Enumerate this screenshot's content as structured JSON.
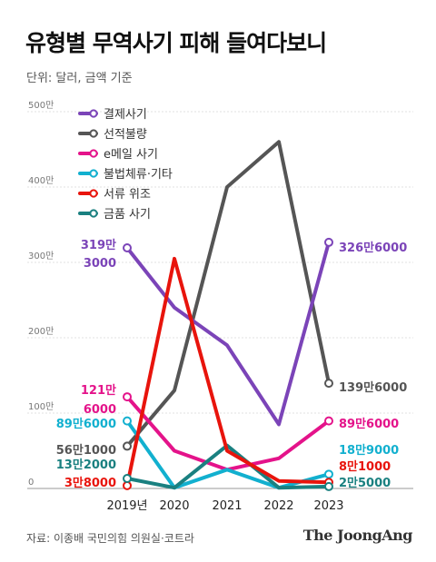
{
  "title": "유형별 무역사기 피해 들여다보니",
  "unit_note": "단위: 달러, 금액 기준",
  "source_note": "자료: 이종배 국민의힘 의원실·코트라",
  "brand": "The JoongAng",
  "chart_data": {
    "type": "line",
    "title": "유형별 무역사기 피해 들여다보니",
    "x": [
      "2019년",
      "2020",
      "2021",
      "2022",
      "2023"
    ],
    "y_ticks": [
      "0",
      "100만",
      "200만",
      "300만",
      "400만",
      "500만"
    ],
    "ylim": [
      0,
      5000000
    ],
    "grid": "horizontal",
    "legend_position": "top-left",
    "series": [
      {
        "name": "결제사기",
        "color": "#7b44b8",
        "values": [
          3193000,
          2400000,
          1900000,
          850000,
          3266000
        ],
        "start_label": [
          "319만",
          "3000"
        ],
        "end_label": "326만6000"
      },
      {
        "name": "선적불량",
        "color": "#555555",
        "values": [
          561000,
          1300000,
          4000000,
          4600000,
          1396000
        ],
        "start_label": [
          "56만1000"
        ],
        "end_label": "139만6000"
      },
      {
        "name": "e메일 사기",
        "color": "#e4138a",
        "values": [
          1216000,
          500000,
          250000,
          400000,
          896000
        ],
        "start_label": [
          "121만",
          "6000"
        ],
        "end_label": "89만6000"
      },
      {
        "name": "불법체류·기타",
        "color": "#12b0cf",
        "values": [
          896000,
          10000,
          250000,
          10000,
          189000
        ],
        "start_label": [
          "89만6000"
        ],
        "end_label": "18만9000"
      },
      {
        "name": "서류 위조",
        "color": "#e8140c",
        "values": [
          38000,
          3050000,
          500000,
          100000,
          81000
        ],
        "start_label": [
          "3만8000"
        ],
        "end_label": "8만1000"
      },
      {
        "name": "금품 사기",
        "color": "#1a8080",
        "values": [
          132000,
          10000,
          570000,
          10000,
          25000
        ],
        "start_label": [
          "13만2000"
        ],
        "end_label": "2만5000"
      }
    ]
  }
}
